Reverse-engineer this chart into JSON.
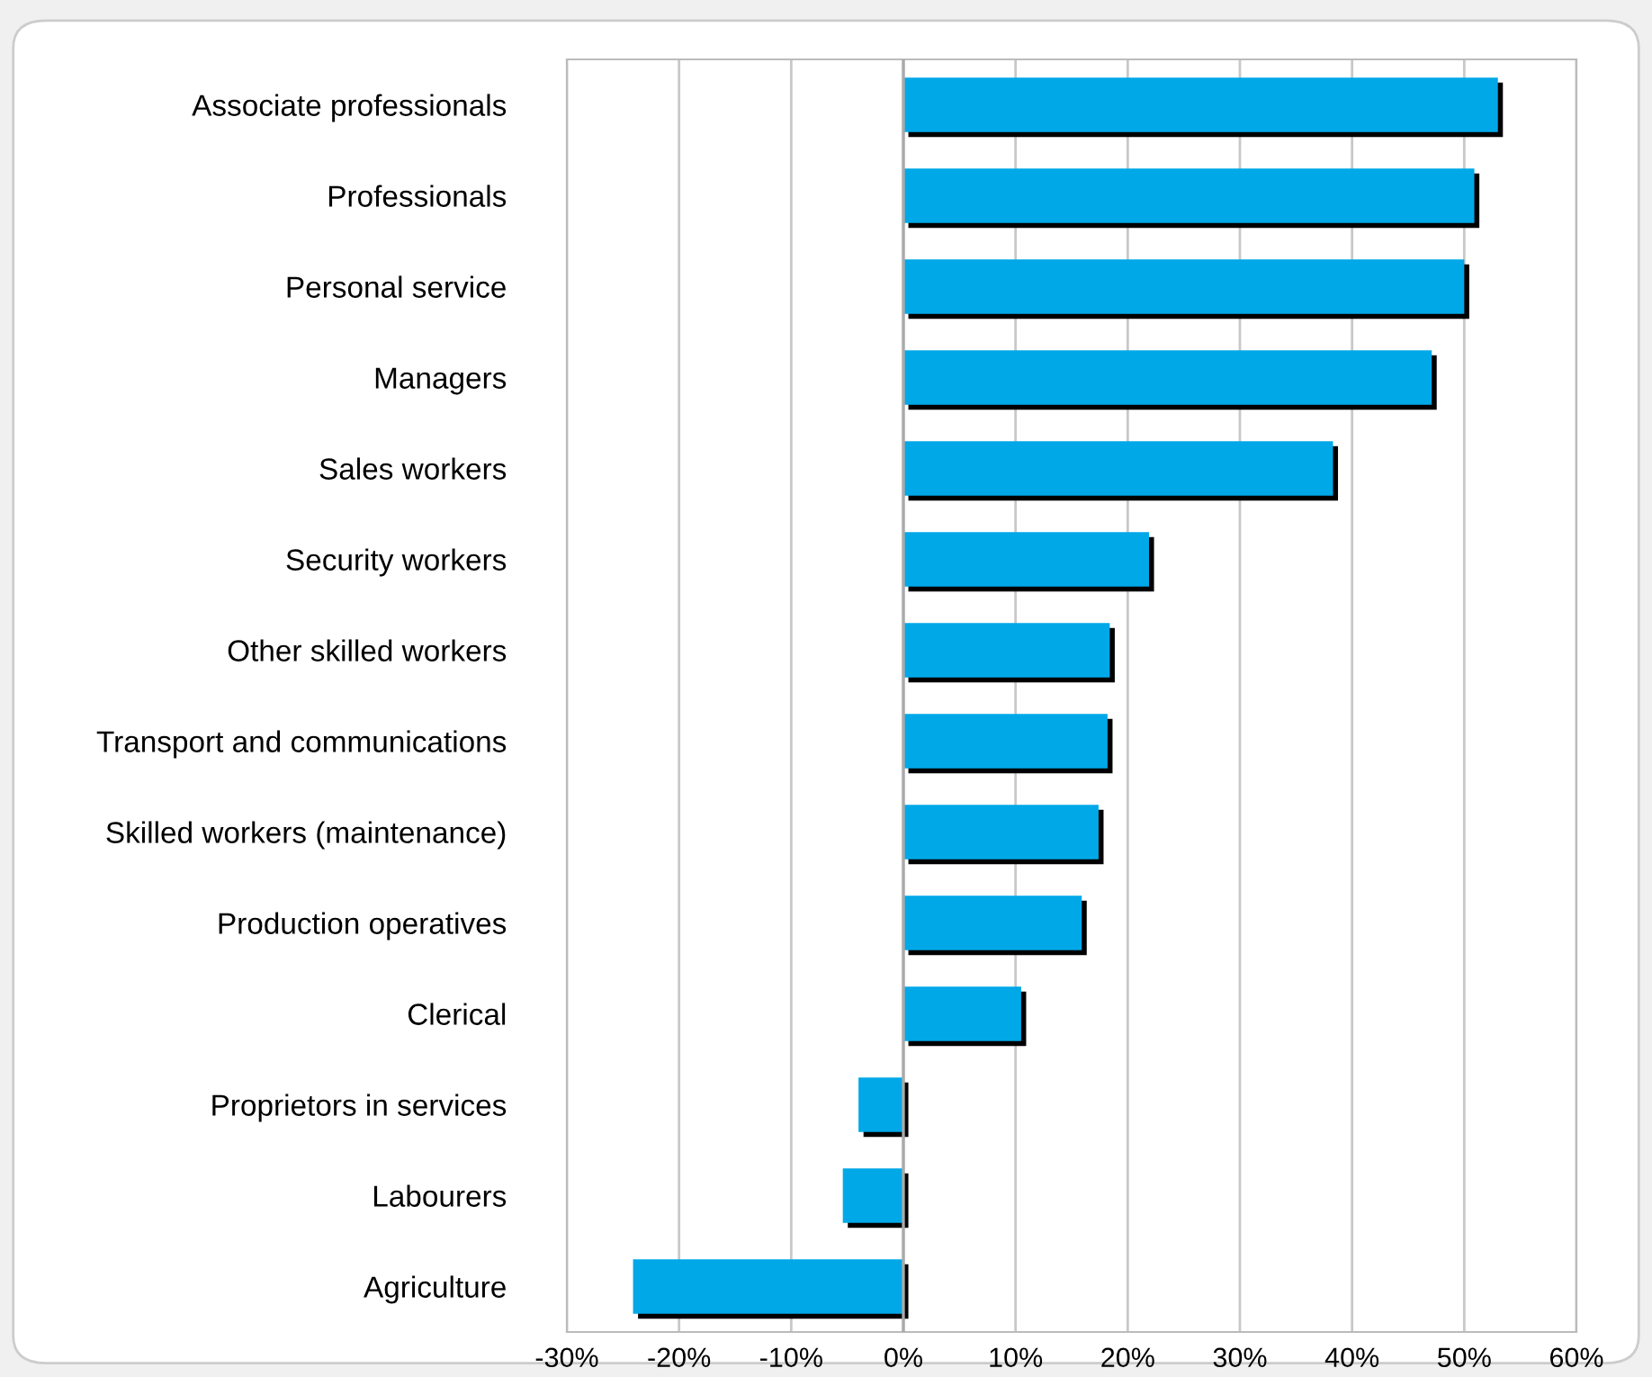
{
  "chart_data": {
    "type": "bar",
    "orientation": "horizontal",
    "categories": [
      "Associate professionals",
      "Professionals",
      "Personal service",
      "Managers",
      "Sales workers",
      "Security workers",
      "Other skilled workers",
      "Transport and communications",
      "Skilled workers (maintenance)",
      "Production operatives",
      "Clerical",
      "Proprietors in services",
      "Labourers",
      "Agriculture"
    ],
    "values": [
      53.0,
      50.9,
      50.0,
      47.1,
      38.3,
      21.9,
      18.4,
      18.2,
      17.4,
      15.9,
      10.5,
      -4.0,
      -5.4,
      -24.1
    ],
    "color": "#00a8e8",
    "xlim": [
      -30,
      60
    ],
    "xticks": [
      {
        "value": -30,
        "label": "-30%"
      },
      {
        "value": -20,
        "label": "-20%"
      },
      {
        "value": -10,
        "label": "-10%"
      },
      {
        "value": 0,
        "label": "0%"
      },
      {
        "value": 10,
        "label": "10%"
      },
      {
        "value": 20,
        "label": "20%"
      },
      {
        "value": 30,
        "label": "30%"
      },
      {
        "value": 40,
        "label": "40%"
      },
      {
        "value": 50,
        "label": "50%"
      },
      {
        "value": 60,
        "label": "60%"
      }
    ],
    "grid": "x"
  }
}
